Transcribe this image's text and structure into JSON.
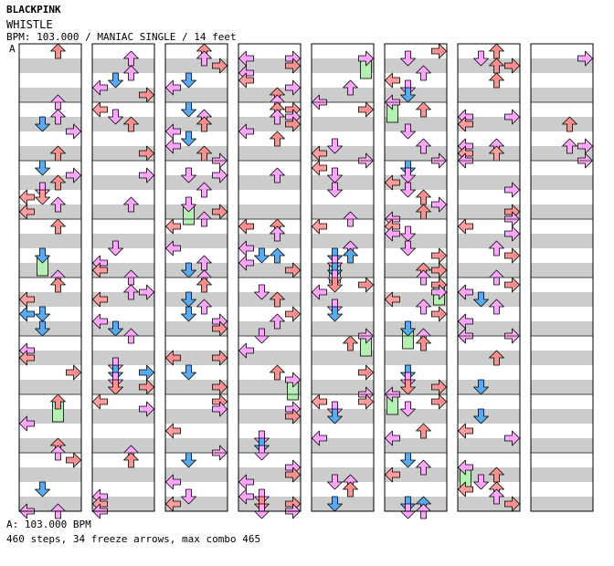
{
  "header": {
    "artist": "BLACKPINK",
    "song": "WHISTLE",
    "meta": "BPM: 103.000 / MANIAC SINGLE / 14 feet",
    "bpm_marker": "A"
  },
  "footer": {
    "bpm_line": "A: 103.000 BPM",
    "stats_line": "460 steps, 34 freeze arrows, max combo 465"
  },
  "colors": {
    "band": "#cccccc",
    "background": "#ffffff",
    "column_border": "#000000",
    "measure_line": "#444444",
    "left_arrow": "#ff9e9e",
    "down_arrow": "#5aaaf0",
    "up_arrow": "#ff8e8e",
    "right_arrow": "#ff9090",
    "eighth_arrow": "#ffa6ff",
    "sixteenth_arrow": "#5aaaf0",
    "freeze_body": "#b4f0b4",
    "freeze_head": "#30d030"
  },
  "chart_data": {
    "type": "step-chart",
    "columns": 8,
    "measures_per_column": 8,
    "rows_per_measure": 16,
    "lanes": [
      "left",
      "down",
      "up",
      "right"
    ],
    "steps_total": 460,
    "freeze_arrows_total": 34,
    "max_combo": 465
  }
}
